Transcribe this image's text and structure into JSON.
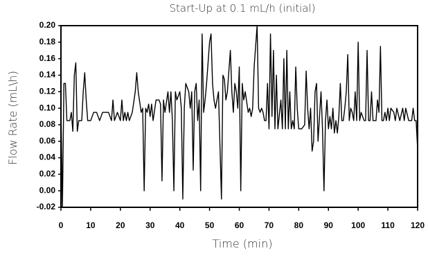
{
  "chart_data": {
    "type": "line",
    "title": "Start-Up at 0.1 mL/h (initial)",
    "x_label": "Time (min)",
    "y_label": "Flow Rate (mL\\h)",
    "xlim": [
      0,
      120
    ],
    "xticks": [
      0,
      10,
      20,
      30,
      40,
      50,
      60,
      70,
      80,
      90,
      100,
      110,
      120
    ],
    "ylim": [
      -0.02,
      0.2
    ],
    "yticks": [
      {
        "value": -0.02,
        "label": "-0.02"
      },
      {
        "value": 0,
        "label": "0.00"
      },
      0.02,
      0.04,
      0.06,
      0.08,
      {
        "value": 0.1,
        "label": "0.10"
      },
      0.12,
      0.14,
      0.16,
      0.18,
      {
        "value": 0.2,
        "label": "0.20"
      }
    ],
    "grid": false,
    "series": [
      {
        "name": "Flow Rate",
        "color": "#000000",
        "x": [
          0,
          0.5,
          1,
          1.5,
          2,
          3,
          3.5,
          4,
          4.5,
          5,
          5.5,
          6,
          7,
          7.5,
          8,
          8.5,
          9,
          10,
          11,
          12,
          13,
          14,
          15,
          16,
          17,
          17.5,
          18,
          19,
          20,
          20.5,
          21,
          21.5,
          22,
          22.5,
          23,
          24,
          25,
          25.5,
          26,
          27,
          27.5,
          28,
          28.5,
          29,
          29.5,
          30,
          30.5,
          31,
          32,
          33,
          33.5,
          34,
          34.5,
          35,
          36,
          36.5,
          37,
          37.5,
          38,
          38.5,
          39,
          40,
          40.5,
          41,
          41.5,
          42,
          43,
          43.5,
          44,
          44.5,
          45,
          45.5,
          46,
          46.5,
          47,
          47.5,
          48,
          48.5,
          49,
          50,
          50.5,
          51,
          51.5,
          52,
          52.5,
          53,
          54,
          54.5,
          55,
          55.5,
          56,
          57,
          57.5,
          58,
          58.5,
          59,
          59.5,
          60,
          60.5,
          61,
          61.5,
          62,
          63,
          63.5,
          64,
          64.5,
          65,
          66,
          66.5,
          67,
          67.5,
          68,
          68.5,
          69,
          69.5,
          70,
          70.5,
          71,
          71.5,
          72,
          72.5,
          73,
          74,
          74.5,
          75,
          75.5,
          76,
          76.5,
          77,
          77.5,
          78,
          78.5,
          79,
          79.5,
          80,
          81,
          82,
          82.5,
          83,
          83.5,
          84,
          84.5,
          85,
          85.5,
          86,
          86.5,
          87,
          87.5,
          88,
          88.5,
          89,
          89.5,
          90,
          90.5,
          91,
          91.5,
          92,
          92.5,
          93,
          93.5,
          94,
          94.5,
          95,
          95.5,
          96,
          96.5,
          97,
          97.5,
          98,
          98.5,
          99,
          99.5,
          100,
          100.5,
          101,
          102,
          102.5,
          103,
          103.5,
          104,
          104.5,
          105,
          106,
          106.5,
          107,
          107.5,
          108,
          108.5,
          109,
          109.5,
          110,
          110.5,
          111,
          112,
          112.5,
          113,
          114,
          115,
          115.5,
          116,
          117,
          118,
          118.5,
          119,
          119.5,
          120
        ],
        "values": [
          0.1,
          -0.02,
          0.13,
          0.13,
          0.085,
          0.085,
          0.095,
          0.072,
          0.14,
          0.155,
          0.072,
          0.085,
          0.085,
          0.12,
          0.143,
          0.11,
          0.085,
          0.085,
          0.095,
          0.095,
          0.085,
          0.095,
          0.095,
          0.095,
          0.085,
          0.11,
          0.085,
          0.095,
          0.085,
          0.11,
          0.085,
          0.095,
          0.085,
          0.095,
          0.085,
          0.095,
          0.12,
          0.143,
          0.12,
          0.095,
          0.1,
          0,
          0.1,
          0.095,
          0.105,
          0.09,
          0.105,
          0.085,
          0.11,
          0.11,
          0.105,
          0.012,
          0.11,
          0.095,
          0.12,
          0.095,
          0.12,
          0.085,
          0,
          0.12,
          0.11,
          0.12,
          0.1,
          -0.01,
          0.1,
          0.13,
          0.12,
          0.1,
          0.12,
          0.025,
          0.12,
          0.13,
          0.085,
          0.11,
          0,
          0.19,
          0.095,
          0.11,
          0.13,
          0.18,
          0.19,
          0.13,
          0.11,
          0.1,
          0.11,
          0.12,
          -0.01,
          0.14,
          0.135,
          0.11,
          0.12,
          0.17,
          0.12,
          0.095,
          0.13,
          0.12,
          0.1,
          0.15,
          0,
          0.13,
          0.11,
          0.12,
          0.095,
          0.1,
          0.09,
          0.1,
          0.15,
          0.2,
          0.1,
          0.095,
          0.1,
          0.095,
          0.085,
          0.085,
          0.13,
          0.075,
          0.19,
          0.09,
          0.17,
          0.075,
          0.14,
          0.075,
          0.11,
          0.075,
          0.16,
          0.075,
          0.17,
          0.075,
          0.12,
          0.075,
          0.085,
          0.075,
          0.15,
          0.1,
          0.075,
          0.075,
          0.08,
          0.145,
          0.1,
          0.075,
          0.1,
          0.048,
          0.06,
          0.12,
          0.13,
          0.06,
          0.09,
          0.12,
          0.075,
          0,
          0.085,
          0.11,
          0.075,
          0.09,
          0.075,
          0.1,
          0.07,
          0.085,
          0.07,
          0.09,
          0.13,
          0.085,
          0.085,
          0.1,
          0.12,
          0.165,
          0.085,
          0.1,
          0.095,
          0.085,
          0.12,
          0.085,
          0.18,
          0.085,
          0.095,
          0.085,
          0.085,
          0.17,
          0.085,
          0.085,
          0.12,
          0.085,
          0.085,
          0.11,
          0.095,
          0.175,
          0.085,
          0.085,
          0.095,
          0.085,
          0.1,
          0.085,
          0.1,
          0.095,
          0.085,
          0.1,
          0.085,
          0.1,
          0.085,
          0.1,
          0.085,
          0.085,
          0.1,
          0.085,
          0.085,
          0.05
        ]
      }
    ]
  }
}
